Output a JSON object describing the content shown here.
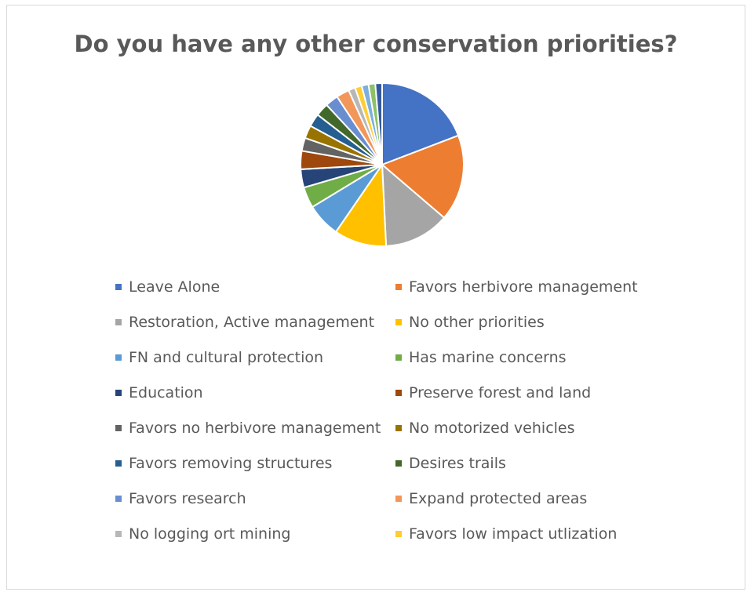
{
  "chart_data": {
    "type": "pie",
    "title": "Do you have any other conservation priorities?",
    "legend_position": "bottom",
    "slices": [
      {
        "label": "Leave Alone",
        "value": 18.5,
        "color": "#4472C4",
        "in_legend": true
      },
      {
        "label": "Favors herbivore management",
        "value": 16.5,
        "color": "#ED7D31",
        "in_legend": true
      },
      {
        "label": "Restoration, Active management",
        "value": 12.5,
        "color": "#A5A5A5",
        "in_legend": true
      },
      {
        "label": "No other priorities",
        "value": 10.0,
        "color": "#FFC000",
        "in_legend": true
      },
      {
        "label": "FN and cultural protection",
        "value": 6.5,
        "color": "#5B9BD5",
        "in_legend": true
      },
      {
        "label": "Has marine concerns",
        "value": 4.0,
        "color": "#70AD47",
        "in_legend": true
      },
      {
        "label": "Education",
        "value": 3.5,
        "color": "#264478",
        "in_legend": true
      },
      {
        "label": "Preserve forest and land",
        "value": 3.5,
        "color": "#9E480E",
        "in_legend": true
      },
      {
        "label": "Favors no herbivore management",
        "value": 2.5,
        "color": "#636363",
        "in_legend": true
      },
      {
        "label": "No motorized vehicles",
        "value": 2.5,
        "color": "#997300",
        "in_legend": true
      },
      {
        "label": "Favors removing  structures",
        "value": 2.5,
        "color": "#255E91",
        "in_legend": true
      },
      {
        "label": "Desires trails",
        "value": 2.5,
        "color": "#43682B",
        "in_legend": true
      },
      {
        "label": "Favors research",
        "value": 2.5,
        "color": "#698ED0",
        "in_legend": true
      },
      {
        "label": "Expand protected areas",
        "value": 2.5,
        "color": "#F1975A",
        "in_legend": true
      },
      {
        "label": "No logging ort mining",
        "value": 1.3,
        "color": "#B7B7B7",
        "in_legend": true
      },
      {
        "label": "Favors low impact utlization",
        "value": 1.3,
        "color": "#FFCD33",
        "in_legend": true
      },
      {
        "label": "",
        "value": 1.3,
        "color": "#7CAFDD",
        "in_legend": false
      },
      {
        "label": "",
        "value": 1.3,
        "color": "#8CC168",
        "in_legend": false
      },
      {
        "label": "",
        "value": 1.3,
        "color": "#335AA1",
        "in_legend": false
      }
    ]
  }
}
